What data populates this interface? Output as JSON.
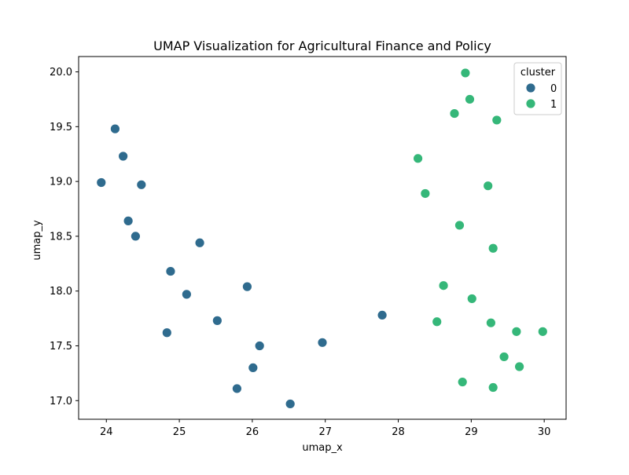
{
  "chart_data": {
    "type": "scatter",
    "title": "UMAP Visualization for Agricultural Finance and Policy",
    "xlabel": "umap_x",
    "ylabel": "umap_y",
    "xlim": [
      23.62,
      30.3
    ],
    "ylim": [
      16.83,
      20.14
    ],
    "xticks": [
      24,
      25,
      26,
      27,
      28,
      29,
      30
    ],
    "yticks": [
      17.0,
      17.5,
      18.0,
      18.5,
      19.0,
      19.5,
      20.0
    ],
    "xtick_labels": [
      "24",
      "25",
      "26",
      "27",
      "28",
      "29",
      "30"
    ],
    "ytick_labels": [
      "17.0",
      "17.5",
      "18.0",
      "18.5",
      "19.0",
      "19.5",
      "20.0"
    ],
    "grid": false,
    "legend": {
      "title": "cluster",
      "placement": "top-right",
      "entries": [
        "0",
        "1"
      ]
    },
    "colors": {
      "0": "#2f6b8e",
      "1": "#35b779"
    },
    "series": [
      {
        "name": "0",
        "points": [
          [
            24.12,
            19.48
          ],
          [
            24.23,
            19.23
          ],
          [
            23.93,
            18.99
          ],
          [
            24.48,
            18.97
          ],
          [
            24.3,
            18.64
          ],
          [
            24.4,
            18.5
          ],
          [
            25.28,
            18.44
          ],
          [
            24.88,
            18.18
          ],
          [
            25.1,
            17.97
          ],
          [
            25.93,
            18.04
          ],
          [
            25.52,
            17.73
          ],
          [
            24.83,
            17.62
          ],
          [
            26.1,
            17.5
          ],
          [
            26.96,
            17.53
          ],
          [
            27.78,
            17.78
          ],
          [
            26.01,
            17.3
          ],
          [
            25.79,
            17.11
          ],
          [
            26.52,
            16.97
          ]
        ]
      },
      {
        "name": "1",
        "points": [
          [
            28.92,
            19.99
          ],
          [
            28.98,
            19.75
          ],
          [
            28.77,
            19.62
          ],
          [
            29.35,
            19.56
          ],
          [
            28.27,
            19.21
          ],
          [
            28.37,
            18.89
          ],
          [
            29.23,
            18.96
          ],
          [
            28.84,
            18.6
          ],
          [
            29.3,
            18.39
          ],
          [
            28.62,
            18.05
          ],
          [
            29.01,
            17.93
          ],
          [
            28.53,
            17.72
          ],
          [
            29.27,
            17.71
          ],
          [
            29.62,
            17.63
          ],
          [
            29.98,
            17.63
          ],
          [
            29.45,
            17.4
          ],
          [
            29.66,
            17.31
          ],
          [
            28.88,
            17.17
          ],
          [
            29.3,
            17.12
          ]
        ]
      }
    ]
  }
}
